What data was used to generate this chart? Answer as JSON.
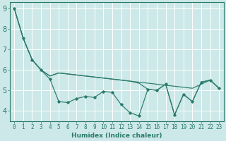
{
  "title": "",
  "xlabel": "Humidex (Indice chaleur)",
  "bg_color": "#cce8e8",
  "line_color": "#2a7a6a",
  "grid_color": "#ffffff",
  "xlim": [
    -0.5,
    23.5
  ],
  "ylim": [
    3.5,
    9.3
  ],
  "yticks": [
    4,
    5,
    6,
    7,
    8,
    9
  ],
  "xticks": [
    0,
    1,
    2,
    3,
    4,
    5,
    6,
    7,
    8,
    9,
    10,
    11,
    12,
    13,
    14,
    15,
    16,
    17,
    18,
    19,
    20,
    21,
    22,
    23
  ],
  "series_main": [
    9.0,
    7.55,
    6.5,
    6.0,
    5.55,
    4.45,
    4.4,
    4.6,
    4.7,
    4.65,
    4.95,
    4.9,
    4.3,
    3.9,
    3.75,
    5.05,
    5.0,
    5.3,
    3.8,
    4.8,
    4.45,
    5.4,
    5.5,
    5.1
  ],
  "series_trend1": [
    9.0,
    7.55,
    6.5,
    6.0,
    5.7,
    5.85,
    5.8,
    5.75,
    5.7,
    5.65,
    5.6,
    5.55,
    5.5,
    5.45,
    5.4,
    5.35,
    5.3,
    5.25,
    5.2,
    5.15,
    5.1,
    5.3,
    5.5,
    5.1
  ],
  "series_trend2": [
    9.0,
    7.55,
    6.5,
    6.0,
    5.7,
    5.85,
    5.8,
    5.75,
    5.7,
    5.65,
    5.6,
    5.55,
    5.5,
    5.45,
    5.35,
    5.05,
    5.0,
    5.3,
    3.8,
    4.8,
    4.45,
    5.4,
    5.5,
    5.1
  ],
  "tick_fontsize": 5.5,
  "label_fontsize": 6.5
}
